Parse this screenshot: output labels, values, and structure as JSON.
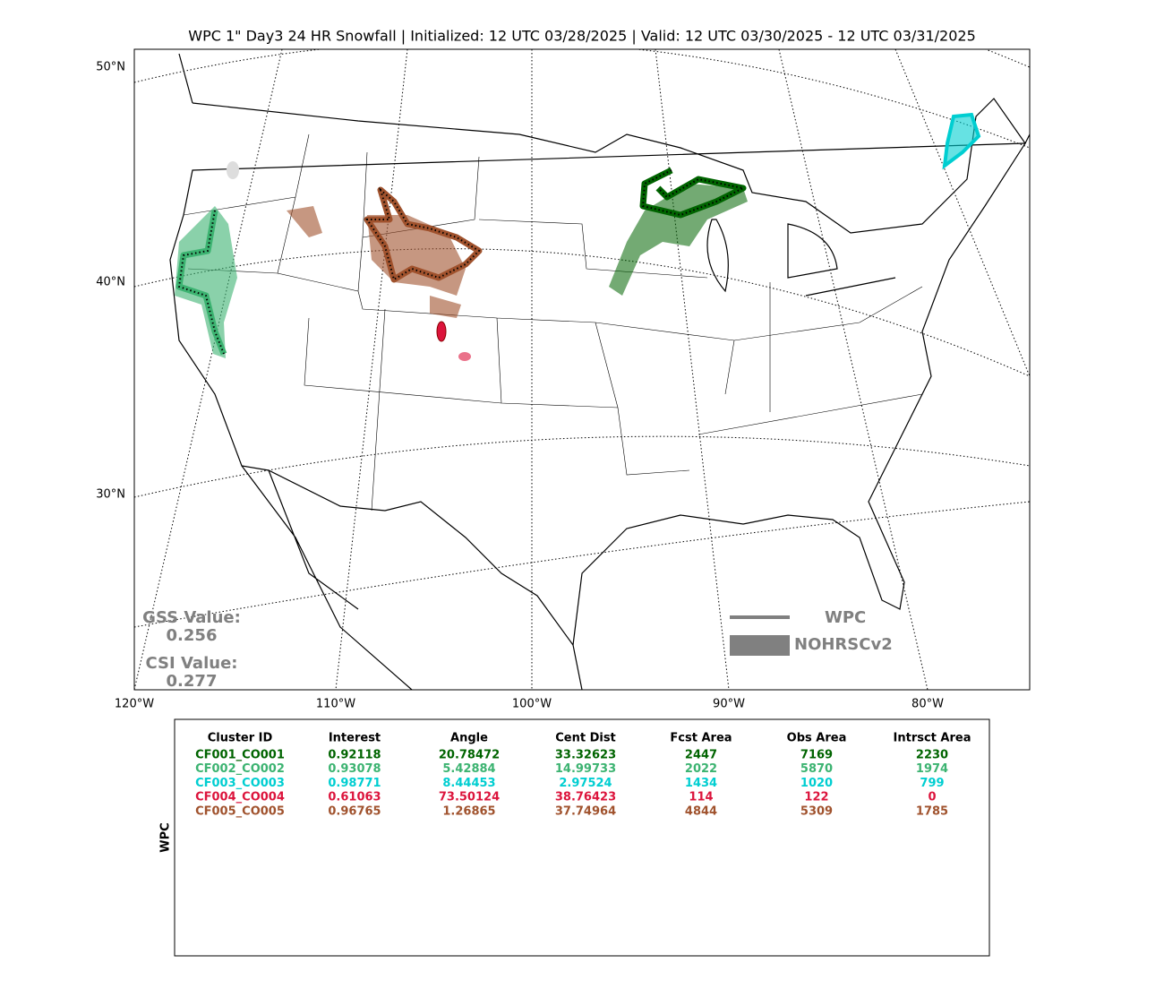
{
  "title": "WPC 1\" Day3 24 HR Snowfall | Initialized: 12 UTC 03/28/2025 | Valid: 12 UTC 03/30/2025 - 12 UTC 03/31/2025",
  "lat_labels": [
    "50°N",
    "40°N",
    "30°N"
  ],
  "lon_labels": [
    "120°W",
    "110°W",
    "100°W",
    "90°W",
    "80°W"
  ],
  "scores": {
    "gss_label": "GSS Value:",
    "gss_value": "0.256",
    "csi_label": "CSI Value:",
    "csi_value": "0.277"
  },
  "legend": {
    "forecast": "WPC",
    "observed": "NOHRSCv2"
  },
  "table": {
    "side_label": "WPC",
    "header": [
      "Cluster ID",
      "Interest",
      "Angle",
      "Cent Dist",
      "Fcst Area",
      "Obs Area",
      "Intrsct Area"
    ],
    "rows": [
      {
        "color": "#006400",
        "cells": [
          "CF001_CO001",
          "0.92118",
          "20.78472",
          "33.32623",
          "2447",
          "7169",
          "2230"
        ]
      },
      {
        "color": "#3cb371",
        "cells": [
          "CF002_CO002",
          "0.93078",
          "5.42884",
          "14.99733",
          "2022",
          "5870",
          "1974"
        ]
      },
      {
        "color": "#00ced1",
        "cells": [
          "CF003_CO003",
          "0.98771",
          "8.44453",
          "2.97524",
          "1434",
          "1020",
          "799"
        ]
      },
      {
        "color": "#dc143c",
        "cells": [
          "CF004_CO004",
          "0.61063",
          "73.50124",
          "38.76423",
          "114",
          "122",
          "0"
        ]
      },
      {
        "color": "#a0522d",
        "cells": [
          "CF005_CO005",
          "0.96765",
          "1.26865",
          "37.74964",
          "4844",
          "5309",
          "1785"
        ]
      }
    ]
  }
}
